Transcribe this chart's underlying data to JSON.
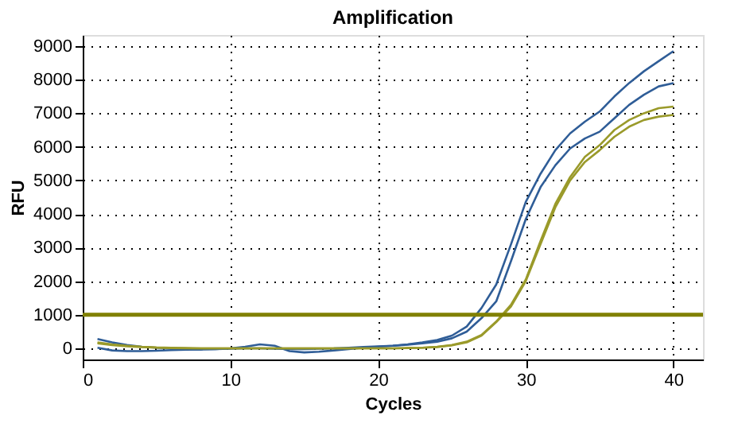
{
  "chart_data": {
    "type": "line",
    "title": "Amplification",
    "xlabel": "Cycles",
    "ylabel": "RFU",
    "x": [
      1,
      2,
      3,
      4,
      5,
      6,
      7,
      8,
      9,
      10,
      11,
      12,
      13,
      14,
      15,
      16,
      17,
      18,
      19,
      20,
      21,
      22,
      23,
      24,
      25,
      26,
      27,
      28,
      29,
      30,
      31,
      32,
      33,
      34,
      35,
      36,
      37,
      38,
      39,
      40
    ],
    "series": [
      {
        "color": "#2f5d97",
        "values": [
          280,
          180,
          100,
          50,
          20,
          0,
          -20,
          -30,
          -20,
          0,
          50,
          120,
          80,
          -80,
          -120,
          -100,
          -60,
          -20,
          20,
          50,
          80,
          120,
          180,
          250,
          380,
          650,
          1200,
          1900,
          3100,
          4360,
          5200,
          5900,
          6400,
          6750,
          7050,
          7500,
          7900,
          8250,
          8550,
          8850
        ]
      },
      {
        "color": "#2f5d97",
        "values": [
          20,
          -60,
          -80,
          -80,
          -70,
          -50,
          -40,
          -30,
          -20,
          -10,
          0,
          0,
          -10,
          -20,
          -20,
          -10,
          0,
          20,
          40,
          60,
          80,
          110,
          150,
          200,
          300,
          500,
          900,
          1400,
          2600,
          3850,
          4800,
          5450,
          5950,
          6250,
          6450,
          6850,
          7250,
          7550,
          7800,
          7900
        ]
      },
      {
        "color": "#9a9a2a",
        "values": [
          180,
          120,
          80,
          50,
          30,
          20,
          10,
          0,
          0,
          0,
          0,
          0,
          0,
          0,
          0,
          0,
          0,
          0,
          0,
          0,
          0,
          10,
          20,
          50,
          100,
          200,
          400,
          800,
          1300,
          2050,
          3200,
          4300,
          5100,
          5700,
          6050,
          6500,
          6800,
          7000,
          7150,
          7200
        ]
      },
      {
        "color": "#9a9a2a",
        "values": [
          150,
          100,
          60,
          40,
          20,
          10,
          0,
          0,
          0,
          0,
          0,
          0,
          0,
          0,
          0,
          0,
          0,
          0,
          0,
          0,
          0,
          10,
          20,
          40,
          90,
          180,
          380,
          780,
          1250,
          2000,
          3100,
          4200,
          5000,
          5550,
          5900,
          6300,
          6600,
          6800,
          6900,
          6950
        ]
      }
    ],
    "xlim": [
      0,
      42
    ],
    "xticks": [
      0,
      10,
      20,
      30,
      40
    ],
    "ylim": [
      -330,
      9330
    ],
    "yticks": [
      0,
      1000,
      2000,
      3000,
      4000,
      5000,
      6000,
      7000,
      8000,
      9000
    ],
    "grid": true,
    "marker": "none",
    "line_style": "solid",
    "ref_lines": [
      {
        "axis": "y",
        "value": 1000,
        "color": "#808000"
      }
    ]
  }
}
